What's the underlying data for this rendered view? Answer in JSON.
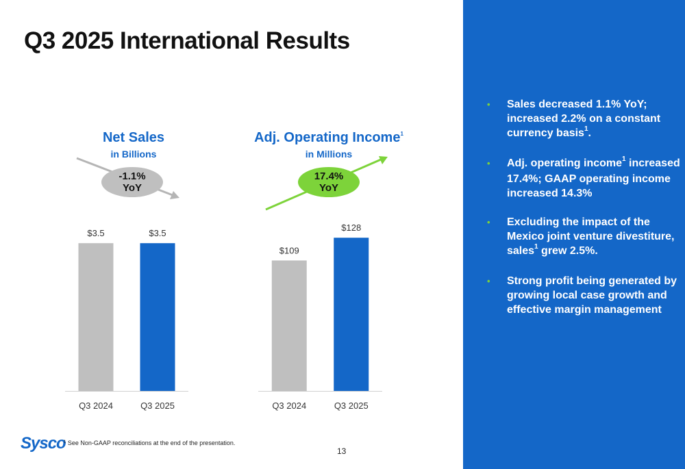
{
  "title": "Q3 2025 International Results",
  "chart_data": [
    {
      "type": "bar",
      "title": "Net Sales",
      "subtitle": "in Billions",
      "categories": [
        "Q3 2024",
        "Q3 2025"
      ],
      "values": [
        3.5,
        3.5
      ],
      "data_labels": [
        "$3.5",
        "$3.5"
      ],
      "bar_colors": [
        "#bfbfbf",
        "#1467c8"
      ],
      "change_badge": "-1.1%\nYoY",
      "change_direction": "down",
      "ylim": [
        0,
        4.2
      ]
    },
    {
      "type": "bar",
      "title": "Adj. Operating Income",
      "title_footnote": "1",
      "subtitle": "in Millions",
      "categories": [
        "Q3 2024",
        "Q3 2025"
      ],
      "values": [
        109,
        128
      ],
      "data_labels": [
        "$109",
        "$128"
      ],
      "bar_colors": [
        "#bfbfbf",
        "#1467c8"
      ],
      "change_badge": "17.4%\nYoY",
      "change_direction": "up",
      "ylim": [
        0,
        155
      ]
    }
  ],
  "badges": {
    "net_sales_line1": "-1.1%",
    "net_sales_line2": "YoY",
    "op_income_line1": "17.4%",
    "op_income_line2": "YoY"
  },
  "bullets": [
    {
      "text": "Sales decreased 1.1% YoY; increased 2.2% on a constant currency basis",
      "footnote": "1",
      "tail": "."
    },
    {
      "text_pre": "Adj. operating income",
      "footnote": "1",
      "text_post": " increased 17.4%; GAAP operating income increased 14.3%"
    },
    {
      "text": "Excluding the impact of the Mexico joint venture divestiture, sales",
      "footnote": "1",
      "tail": " grew 2.5%."
    },
    {
      "text": "Strong profit being generated by growing local case growth and effective margin management"
    }
  ],
  "bullet_symbol": "•",
  "footnote_marker": "1",
  "footnote_text": "See Non-GAAP reconciliations at the end of the presentation.",
  "logo_text": "Sysco",
  "page_number": "13",
  "colors": {
    "brand_blue": "#1467c8",
    "gray_bar": "#bfbfbf",
    "green_accent": "#7dd33a",
    "pill_gray": "#bfbfbf"
  }
}
